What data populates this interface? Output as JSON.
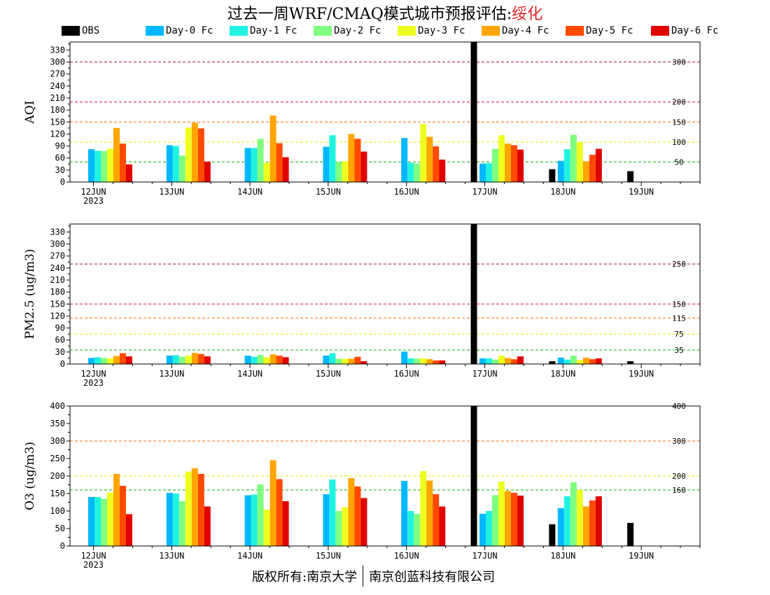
{
  "title": {
    "prefix": "过去一周WRF/CMAQ模式城市预报评估:",
    "city": "绥化"
  },
  "colors": {
    "OBS": "#000000",
    "Day-0 Fc": "#00b8ff",
    "Day-1 Fc": "#20f2e0",
    "Day-2 Fc": "#80ff80",
    "Day-3 Fc": "#eeff20",
    "Day-4 Fc": "#ffa500",
    "Day-5 Fc": "#ff4a00",
    "Day-6 Fc": "#e00000"
  },
  "legend": [
    "OBS",
    "Day-0 Fc",
    "Day-1 Fc",
    "Day-2 Fc",
    "Day-3 Fc",
    "Day-4 Fc",
    "Day-5 Fc",
    "Day-6 Fc"
  ],
  "footer": {
    "left": "版权所有:南京大学",
    "right": "南京创蓝科技有限公司"
  },
  "chart_data": [
    {
      "type": "bar",
      "ylabel": "AQI",
      "ylim": [
        0,
        350
      ],
      "yticks": [
        0,
        30,
        60,
        90,
        120,
        150,
        180,
        210,
        240,
        270,
        300,
        330
      ],
      "categories": [
        "12JUN",
        "13JUN",
        "14JUN",
        "15JUN",
        "16JUN",
        "17JUN",
        "18JUN",
        "19JUN"
      ],
      "first_category_year": "2023",
      "thresholds": [
        {
          "value": 300,
          "label": "300",
          "color": "#a0102a"
        },
        {
          "value": 200,
          "label": "200",
          "color": "#d01030"
        },
        {
          "value": 150,
          "label": "150",
          "color": "#ff6a00"
        },
        {
          "value": 100,
          "label": "100",
          "color": "#e8e800"
        },
        {
          "value": 50,
          "label": "50",
          "color": "#00b000"
        }
      ],
      "series": [
        {
          "name": "OBS",
          "values": [
            null,
            null,
            null,
            null,
            null,
            350,
            32,
            27
          ]
        },
        {
          "name": "Day-0 Fc",
          "values": [
            82,
            92,
            85,
            88,
            110,
            46,
            53,
            null
          ]
        },
        {
          "name": "Day-1 Fc",
          "values": [
            78,
            90,
            85,
            117,
            48,
            47,
            82,
            null
          ]
        },
        {
          "name": "Day-2 Fc",
          "values": [
            77,
            66,
            108,
            50,
            46,
            83,
            118,
            null
          ]
        },
        {
          "name": "Day-3 Fc",
          "values": [
            83,
            136,
            48,
            52,
            145,
            117,
            100,
            null
          ]
        },
        {
          "name": "Day-4 Fc",
          "values": [
            135,
            148,
            166,
            120,
            113,
            96,
            52,
            null
          ]
        },
        {
          "name": "Day-5 Fc",
          "values": [
            96,
            134,
            97,
            108,
            89,
            92,
            68,
            null
          ]
        },
        {
          "name": "Day-6 Fc",
          "values": [
            44,
            51,
            62,
            76,
            56,
            81,
            83,
            null
          ]
        }
      ]
    },
    {
      "type": "bar",
      "ylabel": "PM2.5 (ug/m3)",
      "ylim": [
        0,
        350
      ],
      "yticks": [
        0,
        30,
        60,
        90,
        120,
        150,
        180,
        210,
        240,
        270,
        300,
        330
      ],
      "categories": [
        "12JUN",
        "13JUN",
        "14JUN",
        "15JUN",
        "16JUN",
        "17JUN",
        "18JUN",
        "19JUN"
      ],
      "first_category_year": "2023",
      "thresholds": [
        {
          "value": 250,
          "label": "250",
          "color": "#a0102a"
        },
        {
          "value": 150,
          "label": "150",
          "color": "#d01030"
        },
        {
          "value": 115,
          "label": "115",
          "color": "#ff6a00"
        },
        {
          "value": 75,
          "label": "75",
          "color": "#e8e800"
        },
        {
          "value": 35,
          "label": "35",
          "color": "#00b000"
        }
      ],
      "series": [
        {
          "name": "OBS",
          "values": [
            null,
            null,
            null,
            null,
            null,
            350,
            7,
            7
          ]
        },
        {
          "name": "Day-0 Fc",
          "values": [
            15,
            21,
            21,
            21,
            31,
            14,
            16,
            null
          ]
        },
        {
          "name": "Day-1 Fc",
          "values": [
            17,
            22,
            18,
            27,
            14,
            14,
            11,
            null
          ]
        },
        {
          "name": "Day-2 Fc",
          "values": [
            15,
            18,
            23,
            13,
            13,
            11,
            21,
            null
          ]
        },
        {
          "name": "Day-3 Fc",
          "values": [
            14,
            21,
            17,
            13,
            14,
            21,
            10,
            null
          ]
        },
        {
          "name": "Day-4 Fc",
          "values": [
            20,
            28,
            24,
            13,
            12,
            15,
            16,
            null
          ]
        },
        {
          "name": "Day-5 Fc",
          "values": [
            27,
            25,
            21,
            18,
            9,
            12,
            12,
            null
          ]
        },
        {
          "name": "Day-6 Fc",
          "values": [
            19,
            19,
            17,
            7,
            9,
            19,
            14,
            null
          ]
        }
      ]
    },
    {
      "type": "bar",
      "ylabel": "O3 (ug/m3)",
      "ylim": [
        0,
        400
      ],
      "yticks": [
        0,
        50,
        100,
        150,
        200,
        250,
        300,
        350,
        400
      ],
      "categories": [
        "12JUN",
        "13JUN",
        "14JUN",
        "15JUN",
        "16JUN",
        "17JUN",
        "18JUN",
        "19JUN"
      ],
      "first_category_year": "2023",
      "thresholds": [
        {
          "value": 400,
          "label": "400",
          "color": "#a0102a"
        },
        {
          "value": 300,
          "label": "300",
          "color": "#ff6a00"
        },
        {
          "value": 200,
          "label": "200",
          "color": "#e8e800"
        },
        {
          "value": 160,
          "label": "160",
          "color": "#00b000"
        }
      ],
      "series": [
        {
          "name": "OBS",
          "values": [
            null,
            null,
            null,
            null,
            null,
            400,
            62,
            66
          ]
        },
        {
          "name": "Day-0 Fc",
          "values": [
            140,
            152,
            145,
            148,
            186,
            92,
            108,
            null
          ]
        },
        {
          "name": "Day-1 Fc",
          "values": [
            140,
            150,
            147,
            190,
            100,
            100,
            142,
            null
          ]
        },
        {
          "name": "Day-2 Fc",
          "values": [
            135,
            128,
            176,
            100,
            92,
            145,
            182,
            null
          ]
        },
        {
          "name": "Day-3 Fc",
          "values": [
            153,
            213,
            104,
            111,
            214,
            184,
            160,
            null
          ]
        },
        {
          "name": "Day-4 Fc",
          "values": [
            206,
            222,
            245,
            194,
            187,
            157,
            113,
            null
          ]
        },
        {
          "name": "Day-5 Fc",
          "values": [
            172,
            206,
            191,
            170,
            148,
            152,
            130,
            null
          ]
        },
        {
          "name": "Day-6 Fc",
          "values": [
            91,
            113,
            128,
            137,
            113,
            144,
            142,
            null
          ]
        }
      ]
    }
  ]
}
